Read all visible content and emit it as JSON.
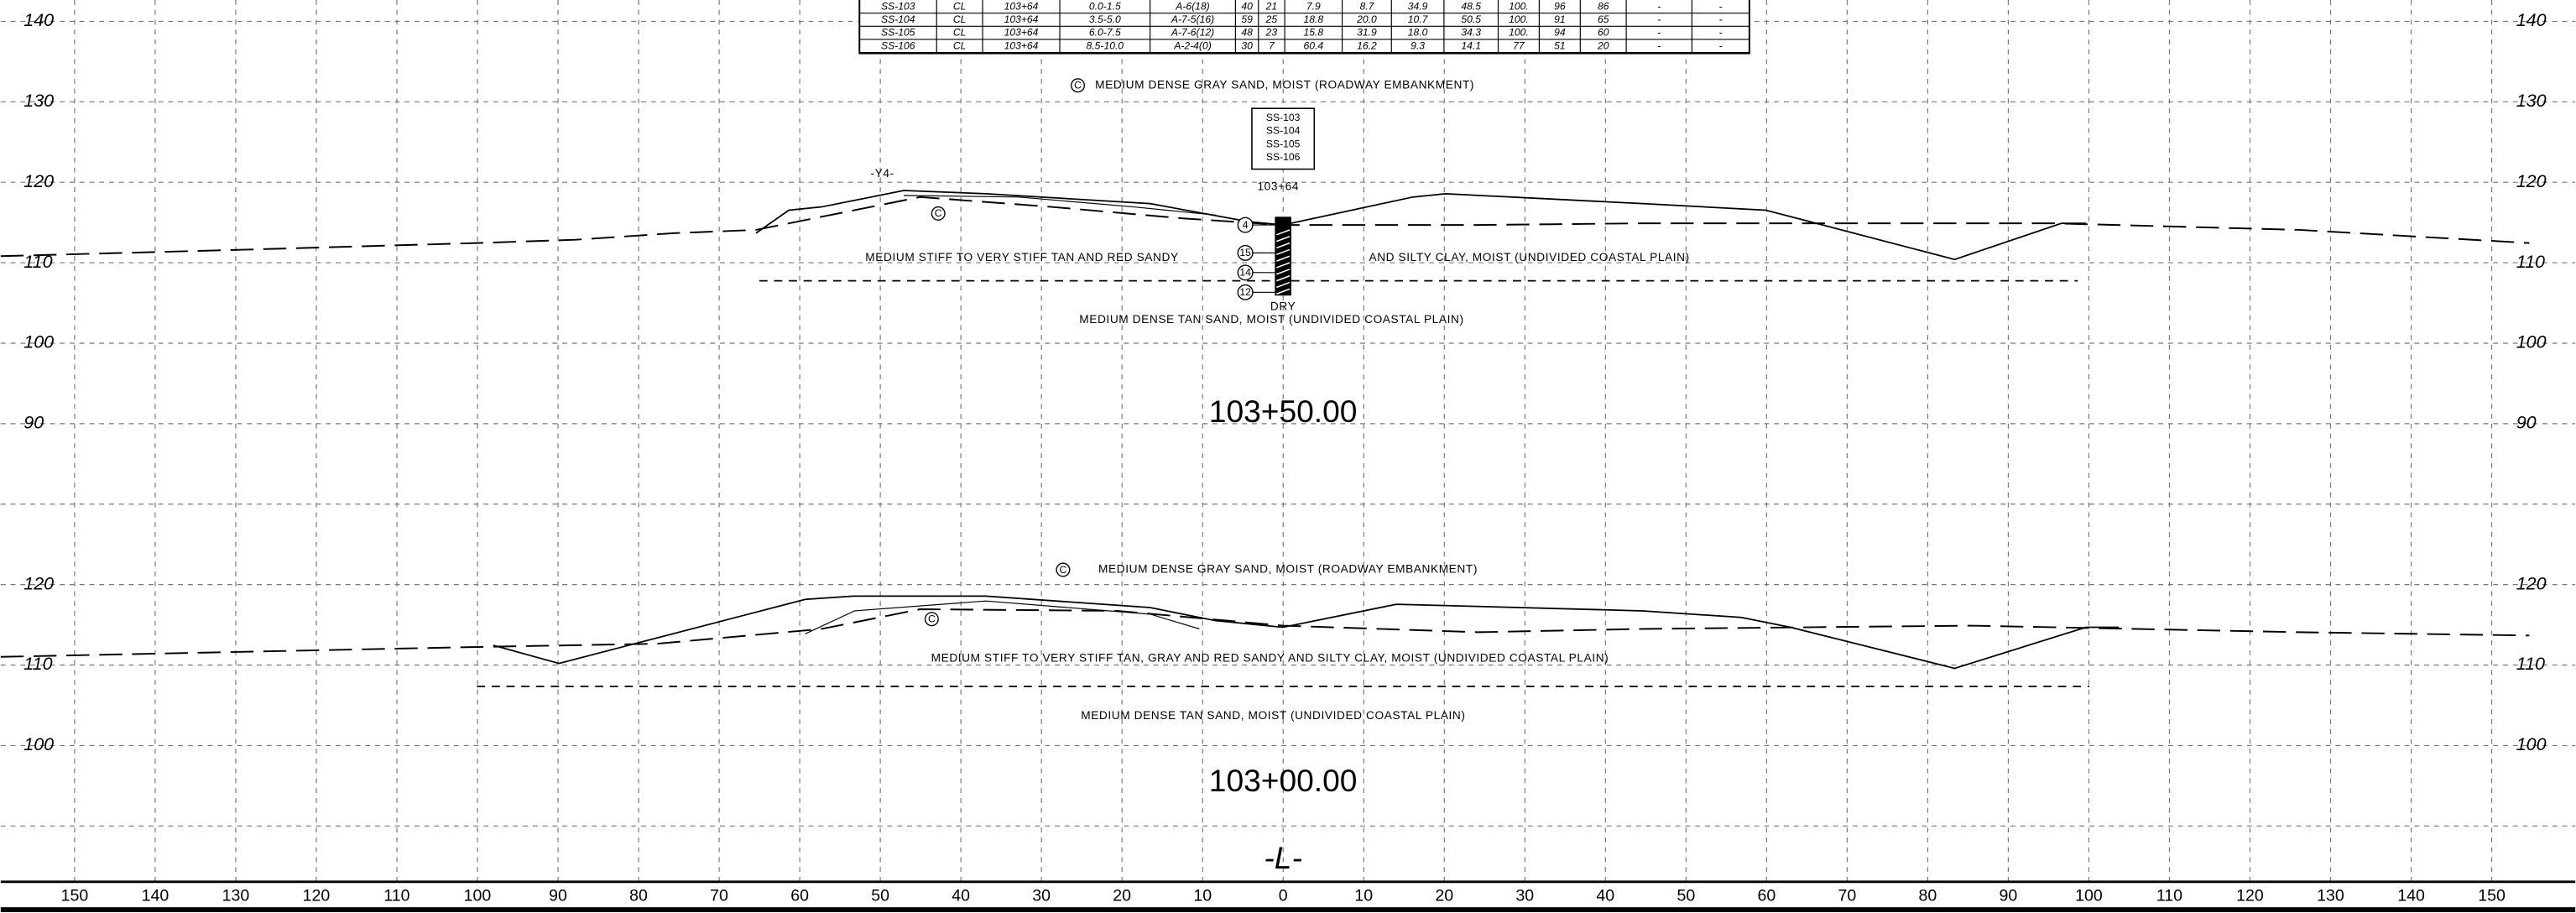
{
  "table": {
    "rows": [
      [
        "SS-103",
        "CL",
        "103+64",
        "0.0-1.5",
        "A-6(18)",
        "40",
        "21",
        "7.9",
        "8.7",
        "34.9",
        "48.5",
        "100.",
        "96",
        "86",
        "-",
        "-"
      ],
      [
        "SS-104",
        "CL",
        "103+64",
        "3.5-5.0",
        "A-7-5(16)",
        "59",
        "25",
        "18.8",
        "20.0",
        "10.7",
        "50.5",
        "100.",
        "91",
        "65",
        "-",
        "-"
      ],
      [
        "SS-105",
        "CL",
        "103+64",
        "6.0-7.5",
        "A-7-6(12)",
        "48",
        "23",
        "15.8",
        "31.9",
        "18.0",
        "34.3",
        "100.",
        "94",
        "60",
        "-",
        "-"
      ],
      [
        "SS-106",
        "CL",
        "103+64",
        "8.5-10.0",
        "A-2-4(0)",
        "30",
        "7",
        "60.4",
        "16.2",
        "9.3",
        "14.1",
        "77",
        "51",
        "20",
        "-",
        "-"
      ]
    ]
  },
  "section_1": {
    "station": "103+50.00",
    "alignment": "-Y4-",
    "embankment_symbol": "C",
    "embankment": "MEDIUM DENSE GRAY SAND, MOIST (ROADWAY EMBANKMENT)",
    "fill_symbol": "C",
    "clay_left": "MEDIUM STIFF TO VERY STIFF TAN AND RED SANDY",
    "clay_right": "AND SILTY CLAY, MOIST (UNDIVIDED COASTAL PLAIN)",
    "sand": "MEDIUM DENSE TAN SAND, MOIST (UNDIVIDED COASTAL PLAIN)",
    "boring": {
      "samples": [
        "SS-103",
        "SS-104",
        "SS-105",
        "SS-106"
      ],
      "station": "103+64",
      "sample_numbers": [
        "4",
        "15",
        "14",
        "12"
      ],
      "water": "DRY"
    },
    "elevations": [
      "140",
      "130",
      "120",
      "110",
      "100",
      "90"
    ]
  },
  "section_2": {
    "station": "103+00.00",
    "embankment_symbol": "C",
    "embankment": "MEDIUM DENSE GRAY SAND, MOIST (ROADWAY EMBANKMENT)",
    "fill_symbol": "C",
    "clay": "MEDIUM STIFF TO VERY STIFF TAN, GRAY AND RED SANDY AND SILTY CLAY, MOIST (UNDIVIDED COASTAL PLAIN)",
    "sand": "MEDIUM DENSE TAN SAND, MOIST (UNDIVIDED COASTAL PLAIN)",
    "elevations": [
      "120",
      "110",
      "100"
    ]
  },
  "centerline": "-L-",
  "offsets": [
    "150",
    "140",
    "130",
    "120",
    "110",
    "100",
    "90",
    "80",
    "70",
    "60",
    "50",
    "40",
    "30",
    "20",
    "10",
    "0",
    "10",
    "20",
    "30",
    "40",
    "50",
    "60",
    "70",
    "80",
    "90",
    "100",
    "110",
    "120",
    "130",
    "140",
    "150"
  ]
}
